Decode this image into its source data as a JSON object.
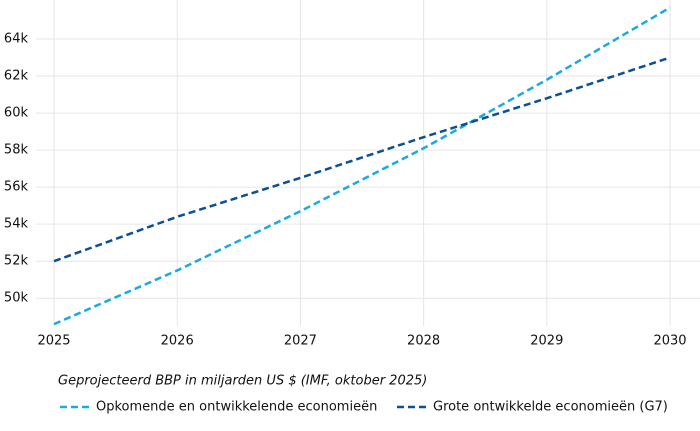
{
  "chart_data": {
    "type": "line",
    "subtitle": "Geprojecteerd BBP in miljarden US $ (IMF, oktober 2025)",
    "x": [
      2025,
      2026,
      2027,
      2028,
      2029,
      2030
    ],
    "series": [
      {
        "name": "Opkomende en ontwikkelende economieën",
        "color": "#1ba9e1",
        "values": [
          48600,
          51500,
          54700,
          58100,
          61800,
          65700
        ]
      },
      {
        "name": "Grote ontwikkelde economieën (G7)",
        "color": "#0b4f94",
        "values": [
          52000,
          54400,
          56500,
          58700,
          60800,
          63000
        ]
      }
    ],
    "xlim": [
      2025,
      2030
    ],
    "xticks": [
      2025,
      2026,
      2027,
      2028,
      2029,
      2030
    ],
    "ylim": [
      48500,
      66000
    ],
    "yticks": [
      {
        "value": 50000,
        "label": "50k"
      },
      {
        "value": 52000,
        "label": "52k"
      },
      {
        "value": 54000,
        "label": "54k"
      },
      {
        "value": 56000,
        "label": "56k"
      },
      {
        "value": 58000,
        "label": "58k"
      },
      {
        "value": 60000,
        "label": "60k"
      },
      {
        "value": 62000,
        "label": "62k"
      },
      {
        "value": 64000,
        "label": "64k"
      }
    ],
    "grid": true,
    "dashed": true
  }
}
